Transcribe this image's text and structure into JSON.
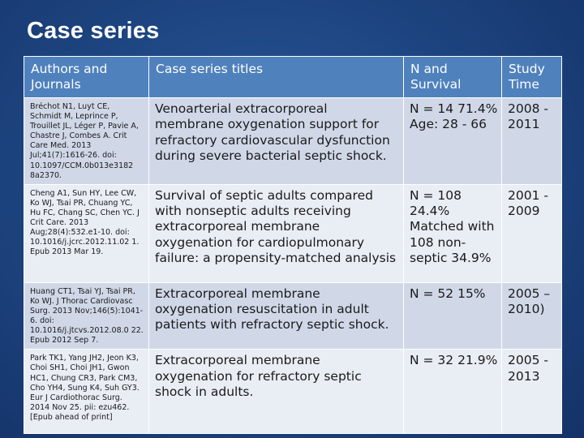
{
  "slide": {
    "title": "Case series"
  },
  "table": {
    "headers": [
      "Authors and Journals",
      "Case series titles",
      "N and Survival",
      "Study Time"
    ],
    "rows": [
      {
        "authors": "Bréchot N1, Luyt CE, Schmidt M, Leprince P, Trouillet JL, Léger P, Pavie A, Chastre J, Combes A. Crit Care Med. 2013 Jul;41(7):1616-26. doi: 10.1097/CCM.0b013e3182 8a2370.",
        "title": "Venoarterial extracorporeal membrane oxygenation support for refractory cardiovascular dysfunction during severe bacterial septic shock.",
        "n_survival": "N = 14 71.4% Age: 28 - 66",
        "study_time": "2008 - 2011"
      },
      {
        "authors": "Cheng A1, Sun HY, Lee CW, Ko WJ, Tsai PR, Chuang YC, Hu FC, Chang SC, Chen YC. J Crit Care. 2013 Aug;28(4):532.e1-10. doi: 10.1016/j.jcrc.2012.11.02 1. Epub 2013 Mar 19.",
        "title": "Survival of septic adults compared with nonseptic adults receiving extracorporeal membrane oxygenation for cardiopulmonary failure: a propensity-matched analysis",
        "n_survival": "N = 108 24.4% Matched with 108 non-septic 34.9%",
        "study_time": "2001 - 2009"
      },
      {
        "authors": "Huang CT1, Tsai YJ, Tsai PR, Ko WJ. J Thorac Cardiovasc Surg. 2013 Nov;146(5):1041-6. doi: 10.1016/j.jtcvs.2012.08.0 22. Epub 2012 Sep 7.",
        "title": "Extracorporeal membrane oxygenation resuscitation in adult patients with refractory septic shock.",
        "n_survival": "N = 52 15%",
        "study_time": "2005 – 2010)"
      },
      {
        "authors": "Park TK1, Yang JH2, Jeon K3, Choi SH1, Choi JH1, Gwon HC1, Chung CR3, Park CM3, Cho YH4, Sung K4, Suh GY3. Eur J Cardiothorac Surg. 2014 Nov 25. pii: ezu462. [Epub ahead of print]",
        "title": "Extracorporeal membrane oxygenation for refractory septic shock in adults.",
        "n_survival": "N = 32 21.9%",
        "study_time": "2005 - 2013"
      }
    ]
  }
}
